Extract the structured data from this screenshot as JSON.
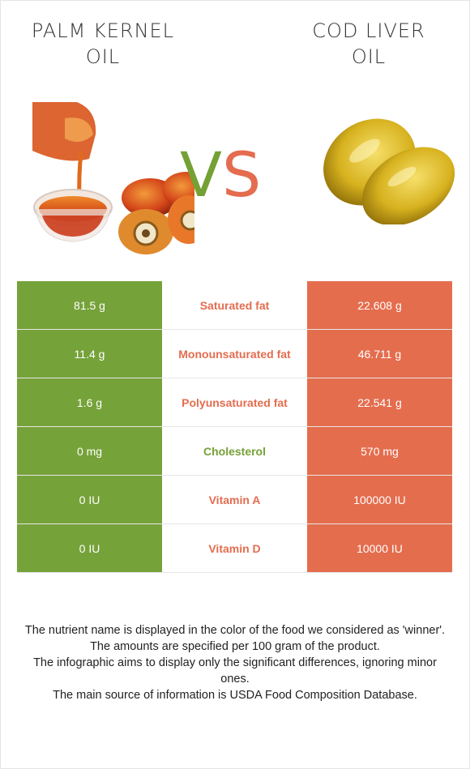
{
  "left_food": {
    "title_line1": "PALM KERNEL",
    "title_line2": "OIL"
  },
  "right_food": {
    "title_line1": "COD LIVER",
    "title_line2": "OIL"
  },
  "vs": {
    "v": "V",
    "s": "S"
  },
  "colors": {
    "left": "#76a23a",
    "right": "#e46d4e"
  },
  "rows": [
    {
      "left": "81.5 g",
      "name": "Saturated fat",
      "right": "22.608 g",
      "winner": "right"
    },
    {
      "left": "11.4 g",
      "name": "Monounsaturated fat",
      "right": "46.711 g",
      "winner": "right"
    },
    {
      "left": "1.6 g",
      "name": "Polyunsaturated fat",
      "right": "22.541 g",
      "winner": "right"
    },
    {
      "left": "0 mg",
      "name": "Cholesterol",
      "right": "570 mg",
      "winner": "left"
    },
    {
      "left": "0 IU",
      "name": "Vitamin A",
      "right": "100000 IU",
      "winner": "right"
    },
    {
      "left": "0 IU",
      "name": "Vitamin D",
      "right": "10000 IU",
      "winner": "right"
    }
  ],
  "footer": [
    "The nutrient name is displayed in the color of the food we considered as 'winner'.",
    "The amounts are specified per 100 gram of the product.",
    "The infographic aims to display only the significant differences, ignoring minor ones.",
    "The main source of information is USDA Food Composition Database."
  ]
}
